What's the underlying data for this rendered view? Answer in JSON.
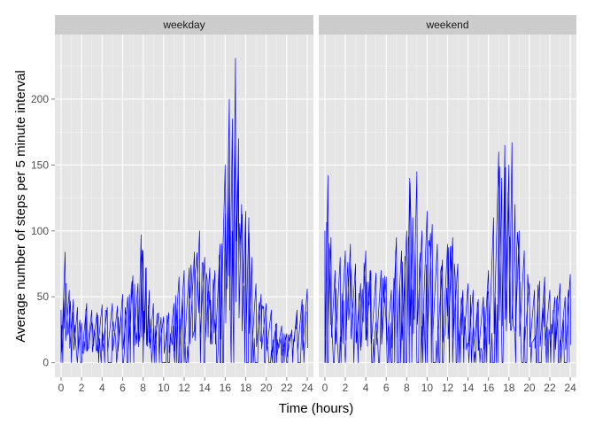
{
  "colors": {
    "panel_bg": "#e5e5e5",
    "grid_major": "#ffffff",
    "grid_minor": "#f2f2f2",
    "strip_bg": "#cccccc",
    "series": "#0000ff",
    "tick": "#7f7f7f"
  },
  "chart_data": {
    "type": "line",
    "facet_by": "day type",
    "xlabel": "Time (hours)",
    "ylabel": "Average number of steps per 5 minute interval",
    "xlim": [
      -0.6,
      24.6
    ],
    "ylim": [
      -11,
      249
    ],
    "x_ticks": [
      0,
      2,
      4,
      6,
      8,
      10,
      12,
      14,
      16,
      18,
      20,
      22,
      24
    ],
    "x_tick_labels": [
      "0",
      "2",
      "4",
      "6",
      "8",
      "10",
      "12",
      "14",
      "16",
      "18",
      "20",
      "22",
      "24"
    ],
    "y_ticks": [
      0,
      50,
      100,
      150,
      200
    ],
    "y_tick_labels": [
      "0",
      "50",
      "100",
      "150",
      "200"
    ],
    "grid": true,
    "legend": "none",
    "panels": [
      {
        "label": "weekday",
        "x": [
          0.0,
          0.4,
          0.8,
          1.2,
          1.6,
          2.0,
          2.5,
          3.0,
          3.5,
          4.0,
          4.5,
          5.0,
          5.5,
          6.0,
          6.5,
          7.0,
          7.5,
          7.8,
          8.0,
          8.3,
          8.6,
          9.0,
          9.5,
          10.0,
          10.5,
          11.0,
          11.5,
          12.0,
          12.5,
          13.0,
          13.5,
          14.0,
          14.5,
          15.0,
          15.5,
          16.0,
          16.4,
          16.7,
          17.0,
          17.3,
          17.6,
          18.0,
          18.3,
          18.6,
          19.0,
          19.5,
          20.0,
          20.5,
          21.0,
          21.5,
          22.0,
          22.5,
          23.0,
          23.5,
          24.0
        ],
        "y": [
          40,
          84,
          55,
          48,
          42,
          30,
          45,
          40,
          38,
          44,
          42,
          45,
          43,
          52,
          50,
          66,
          60,
          97,
          85,
          72,
          55,
          45,
          38,
          35,
          38,
          45,
          65,
          70,
          72,
          84,
          100,
          80,
          72,
          70,
          90,
          150,
          200,
          185,
          231,
          170,
          120,
          115,
          110,
          80,
          60,
          52,
          45,
          40,
          30,
          28,
          22,
          25,
          40,
          48,
          56
        ]
      },
      {
        "label": "weekend",
        "x": [
          0.0,
          0.3,
          0.6,
          1.0,
          1.5,
          2.0,
          2.5,
          3.0,
          3.5,
          4.0,
          4.5,
          5.0,
          5.5,
          6.0,
          6.5,
          7.0,
          7.5,
          8.0,
          8.3,
          8.6,
          9.0,
          9.5,
          10.0,
          10.5,
          11.0,
          11.5,
          12.0,
          12.5,
          13.0,
          13.5,
          14.0,
          14.5,
          15.0,
          15.5,
          16.0,
          16.5,
          17.0,
          17.3,
          17.6,
          18.0,
          18.3,
          18.6,
          19.0,
          19.5,
          20.0,
          20.5,
          21.0,
          21.5,
          22.0,
          22.5,
          23.0,
          23.5,
          24.0
        ],
        "y": [
          100,
          142,
          95,
          70,
          80,
          85,
          90,
          75,
          60,
          85,
          70,
          68,
          70,
          65,
          55,
          95,
          85,
          100,
          140,
          110,
          145,
          100,
          115,
          105,
          90,
          78,
          90,
          95,
          75,
          55,
          60,
          55,
          48,
          50,
          70,
          110,
          160,
          140,
          165,
          150,
          167,
          120,
          100,
          85,
          60,
          55,
          62,
          65,
          55,
          50,
          60,
          50,
          67
        ]
      }
    ]
  }
}
